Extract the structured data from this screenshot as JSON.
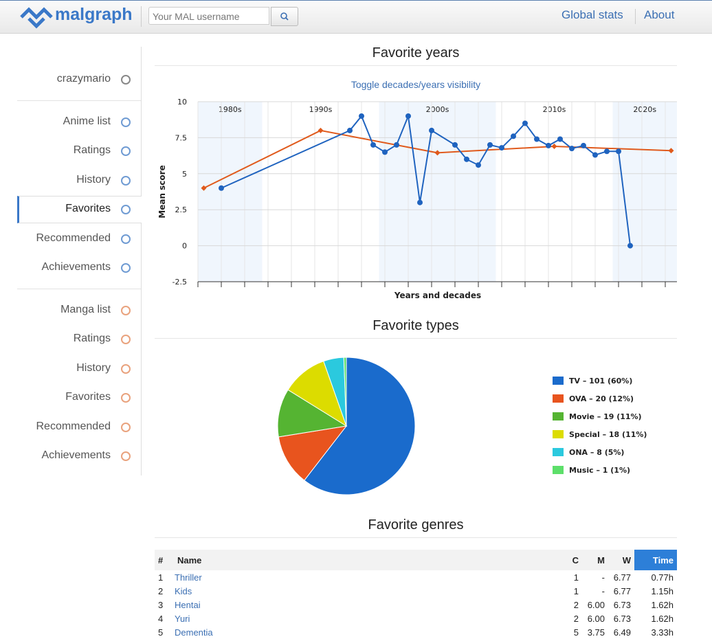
{
  "header": {
    "logo": "malgraph",
    "search_placeholder": "Your MAL username",
    "nav": [
      "Global stats",
      "About"
    ]
  },
  "sidebar": {
    "user": "crazymario",
    "anime": [
      "Anime list",
      "Ratings",
      "History",
      "Favorites",
      "Recommended",
      "Achievements"
    ],
    "manga": [
      "Manga list",
      "Ratings",
      "History",
      "Favorites",
      "Recommended",
      "Achievements"
    ]
  },
  "sections": [
    "Favorite years",
    "Favorite types",
    "Favorite genres"
  ],
  "chart_data": [
    {
      "type": "line",
      "toggle": "Toggle decades/years visibility",
      "ylabel": "Mean score",
      "xlabel": "Years and decades",
      "xlim": [
        1984,
        2025
      ],
      "ylim": [
        -2.5,
        10
      ],
      "yticks": [
        -2.5,
        0,
        2.5,
        5,
        7.5,
        10
      ],
      "xticks": [
        1984,
        1986,
        1988,
        1990,
        1992,
        1994,
        1996,
        1998,
        2000,
        2002,
        2004,
        2006,
        2008,
        2010,
        2012,
        2014,
        2016,
        2018,
        2020,
        2022,
        2024
      ],
      "grid": true,
      "bands": [
        {
          "label": "1980s",
          "range": [
            1979.5,
            1989.5
          ],
          "shaded": true
        },
        {
          "label": "1990s",
          "range": [
            1989.5,
            1999.5
          ],
          "shaded": false
        },
        {
          "label": "2000s",
          "range": [
            1999.5,
            2009.5
          ],
          "shaded": true
        },
        {
          "label": "2010s",
          "range": [
            2009.5,
            2019.5
          ],
          "shaded": false
        },
        {
          "label": "2020s",
          "range": [
            2019.5,
            2029.5
          ],
          "shaded": true
        }
      ],
      "series": [
        {
          "color": "#e05a1c",
          "marker": "diamond",
          "x": [
            1984.5,
            1994.5,
            2004.5,
            2014.5,
            2024.5
          ],
          "values": [
            4,
            8,
            6.45,
            6.9,
            6.6
          ]
        },
        {
          "color": "#1f63bf",
          "marker": "circle",
          "x": [
            1986,
            1997,
            1998,
            1999,
            2000,
            2001,
            2002,
            2003,
            2004,
            2006,
            2007,
            2008,
            2009,
            2010,
            2011,
            2012,
            2013,
            2014,
            2015,
            2016,
            2017,
            2018,
            2019,
            2020,
            2021
          ],
          "values": [
            4,
            8,
            9,
            7,
            6.5,
            7,
            9,
            3,
            8,
            7,
            6,
            5.6,
            7,
            6.8,
            7.6,
            8.5,
            7.4,
            6.95,
            7.4,
            6.75,
            6.95,
            6.3,
            6.55,
            6.55,
            0
          ]
        }
      ]
    },
    {
      "type": "pie",
      "categories": [
        "TV",
        "OVA",
        "Movie",
        "Special",
        "ONA",
        "Music"
      ],
      "values": [
        101,
        20,
        19,
        18,
        8,
        1
      ],
      "labels": [
        "TV – 101 (60%)",
        "OVA – 20 (12%)",
        "Movie – 19 (11%)",
        "Special – 18 (11%)",
        "ONA – 8 (5%)",
        "Music – 1 (1%)"
      ],
      "colors": [
        "#1a6bcc",
        "#e8541e",
        "#55b432",
        "#dcdc00",
        "#2bc9de",
        "#5ddf6a"
      ]
    }
  ],
  "table": {
    "columns": [
      "#",
      "Name",
      "C",
      "M",
      "W",
      "Time"
    ],
    "rows": [
      [
        "1",
        "Thriller",
        "1",
        "-",
        "6.77",
        "0.77h"
      ],
      [
        "2",
        "Kids",
        "1",
        "-",
        "6.77",
        "1.15h"
      ],
      [
        "3",
        "Hentai",
        "2",
        "6.00",
        "6.73",
        "1.62h"
      ],
      [
        "4",
        "Yuri",
        "2",
        "6.00",
        "6.73",
        "1.62h"
      ],
      [
        "5",
        "Dementia",
        "5",
        "3.75",
        "6.49",
        "3.33h"
      ]
    ]
  }
}
